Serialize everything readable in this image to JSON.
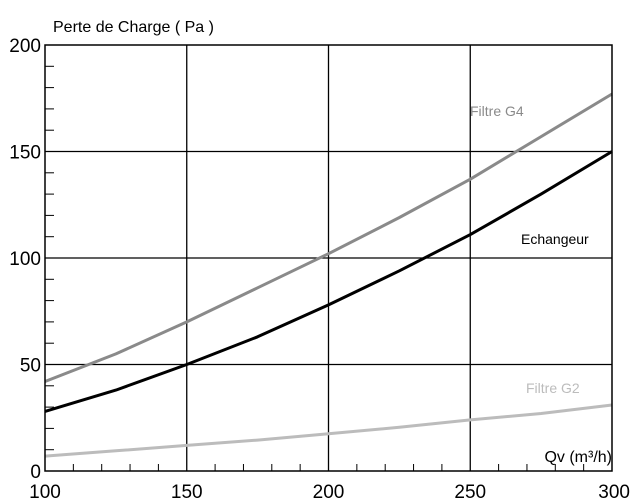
{
  "chart_data": {
    "type": "line",
    "ylabel": "Perte de Charge ( Pa )",
    "xlabel": "Qv  (m³/h)",
    "xlim": [
      100,
      300
    ],
    "ylim": [
      0,
      200
    ],
    "x_ticks": [
      100,
      150,
      200,
      250,
      300
    ],
    "y_ticks": [
      0,
      50,
      100,
      150,
      200
    ],
    "grid": true,
    "x": [
      100,
      125,
      150,
      175,
      200,
      225,
      250,
      275,
      300
    ],
    "series": [
      {
        "name": "Filtre G4",
        "color": "#8a8a8a",
        "values": [
          42,
          55,
          70,
          86,
          102,
          119,
          137,
          157,
          177
        ]
      },
      {
        "name": "Echangeur",
        "color": "#000000",
        "values": [
          28,
          38,
          50,
          63,
          78,
          94,
          111,
          130,
          150
        ]
      },
      {
        "name": "Filtre G2",
        "color": "#bcbcbc",
        "values": [
          7,
          9.5,
          12,
          14.5,
          17.5,
          20.5,
          24,
          27,
          31
        ]
      }
    ]
  }
}
